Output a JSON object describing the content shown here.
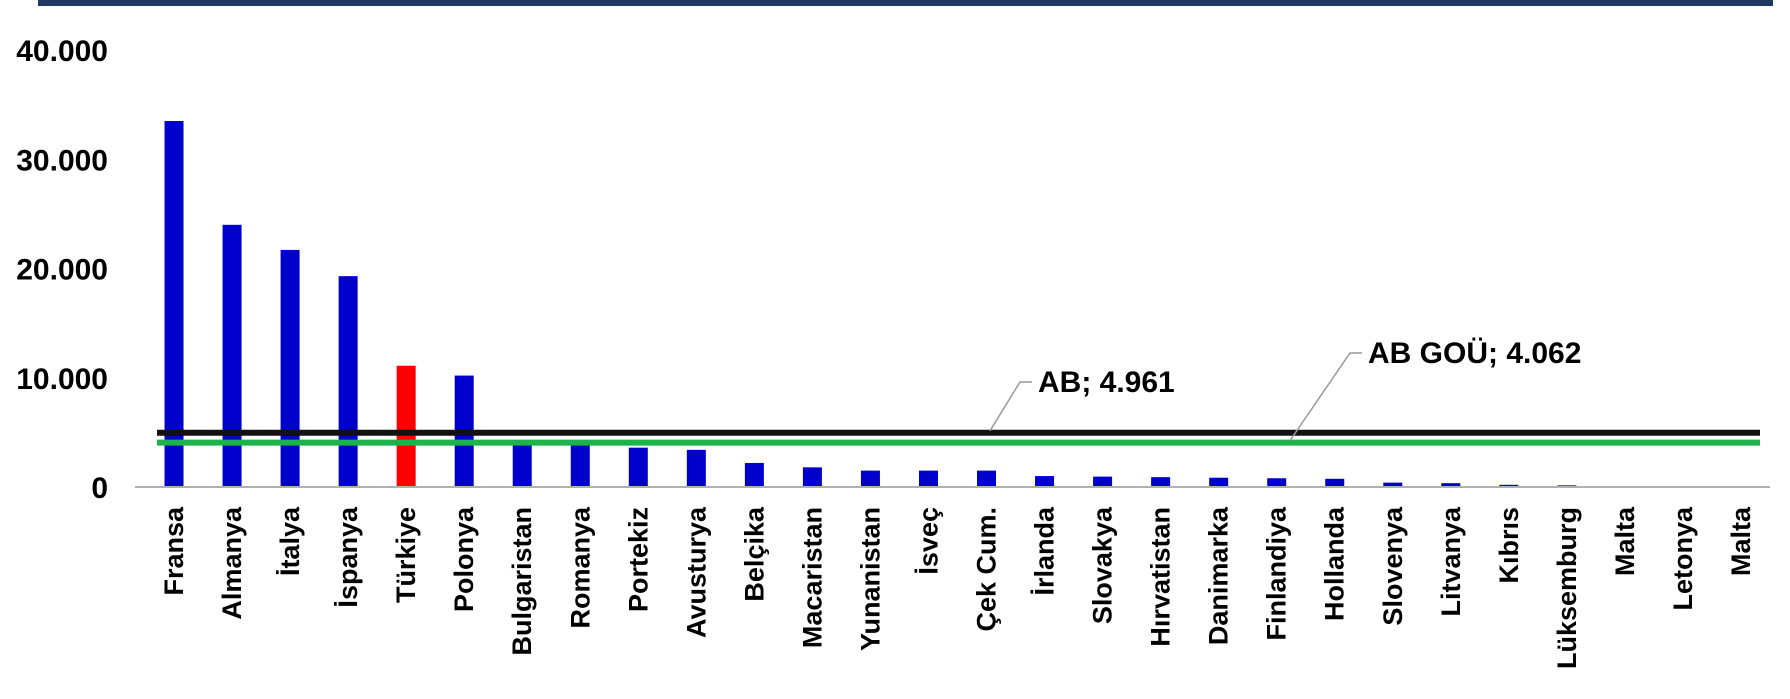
{
  "chart_data": {
    "type": "bar",
    "categories": [
      "Fransa",
      "Almanya",
      "İtalya",
      "İspanya",
      "Türkiye",
      "Polonya",
      "Bulgaristan",
      "Romanya",
      "Portekiz",
      "Avusturya",
      "Belçika",
      "Macaristan",
      "Yunanistan",
      "İsveç",
      "Çek Cum.",
      "İrlanda",
      "Slovakya",
      "Hırvatistan",
      "Danimarka",
      "Finlandiya",
      "Hollanda",
      "Slovenya",
      "Litvanya",
      "Kıbrıs",
      "Lüksemburg",
      "Malta",
      "Letonya",
      "Malta"
    ],
    "values": [
      33500,
      24000,
      21700,
      19300,
      11100,
      10200,
      3900,
      3800,
      3600,
      3400,
      2200,
      1800,
      1500,
      1500,
      1500,
      1000,
      950,
      900,
      850,
      800,
      750,
      400,
      350,
      200,
      150,
      80,
      60,
      0
    ],
    "highlight_index": 4,
    "ylim": [
      0,
      40000
    ],
    "yticks": [
      {
        "value": 0,
        "label": "0"
      },
      {
        "value": 10000,
        "label": "10.000"
      },
      {
        "value": 20000,
        "label": "20.000"
      },
      {
        "value": 30000,
        "label": "30.000"
      },
      {
        "value": 40000,
        "label": "40.000"
      }
    ],
    "reference_lines": [
      {
        "label": "AB;  4.961",
        "value": 4961,
        "color": "#111111"
      },
      {
        "label": "AB GOÜ;  4.062",
        "value": 4062,
        "color": "#1db34a"
      }
    ],
    "colors": {
      "bar": "#0000cc",
      "highlight": "#ff0000",
      "header": "#1f3864",
      "axis": "#b0b0b0"
    }
  }
}
